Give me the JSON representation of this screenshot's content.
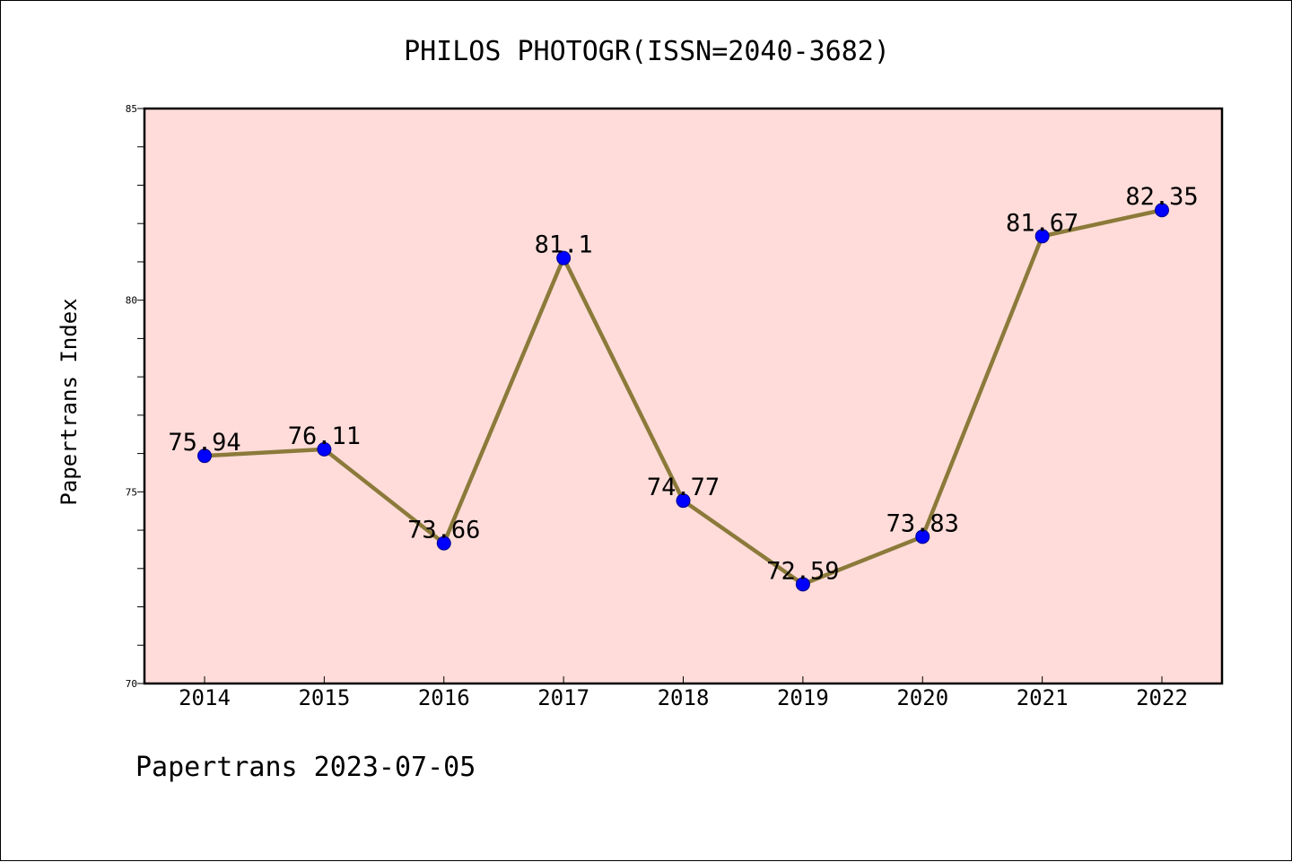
{
  "chart_data": {
    "type": "line",
    "title": "PHILOS PHOTOGR(ISSN=2040-3682)",
    "xlabel": "",
    "ylabel": "Papertrans Index",
    "categories": [
      "2014",
      "2015",
      "2016",
      "2017",
      "2018",
      "2019",
      "2020",
      "2021",
      "2022"
    ],
    "series": [
      {
        "values": [
          75.94,
          76.11,
          73.66,
          81.1,
          74.77,
          72.59,
          73.83,
          81.67,
          82.35
        ],
        "labels": [
          "75.94",
          "76.11",
          "73.66",
          "81.1",
          "74.77",
          "72.59",
          "73.83",
          "81.67",
          "82.35"
        ],
        "line_color": "#8b7a3a",
        "marker_color": "#0000ff"
      }
    ],
    "ylim": [
      70,
      85
    ],
    "yticks": [
      "70",
      "75",
      "80",
      "85"
    ],
    "plot_background": "#ffdcd9",
    "grid": false,
    "legend": "none"
  },
  "footer": "Papertrans 2023-07-05"
}
